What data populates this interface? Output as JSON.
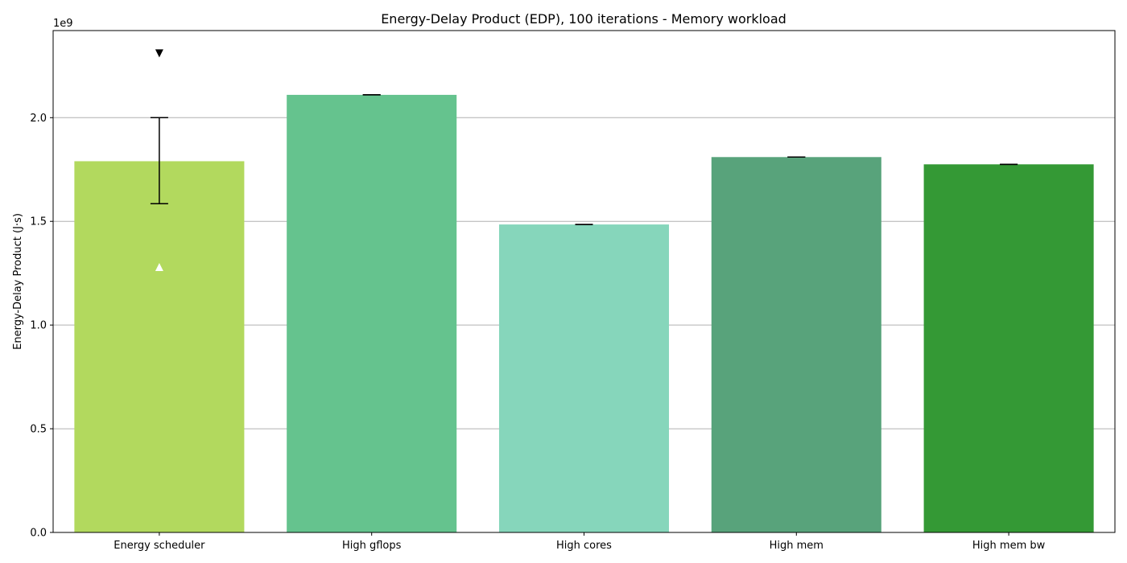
{
  "chart_data": {
    "type": "bar",
    "title": "Energy-Delay Product (EDP), 100 iterations - Memory workload",
    "xlabel": "",
    "ylabel": "Energy-Delay Product (J·s)",
    "y_offset_label": "1e9",
    "y_scale": 1000000000,
    "ylim": [
      0,
      2.42
    ],
    "yticks": [
      0.0,
      0.5,
      1.0,
      1.5,
      2.0
    ],
    "ytick_labels": [
      "0.0",
      "0.5",
      "1.0",
      "1.5",
      "2.0"
    ],
    "grid": "y",
    "categories": [
      "Energy scheduler",
      "High gflops",
      "High cores",
      "High mem",
      "High mem bw"
    ],
    "values": [
      1.79,
      2.11,
      1.485,
      1.81,
      1.775
    ],
    "error_low": [
      1.585,
      2.11,
      1.485,
      1.81,
      1.775
    ],
    "error_high": [
      2.0,
      2.11,
      1.485,
      1.81,
      1.775
    ],
    "markers": [
      {
        "category": "Energy scheduler",
        "y": 2.31,
        "shape": "triangle-down",
        "color": "#000000"
      },
      {
        "category": "Energy scheduler",
        "y": 1.28,
        "shape": "triangle-up",
        "color": "#ffffff"
      }
    ],
    "colors": [
      "#b2d95e",
      "#65c38e",
      "#86d6bb",
      "#58a37b",
      "#349935"
    ]
  }
}
